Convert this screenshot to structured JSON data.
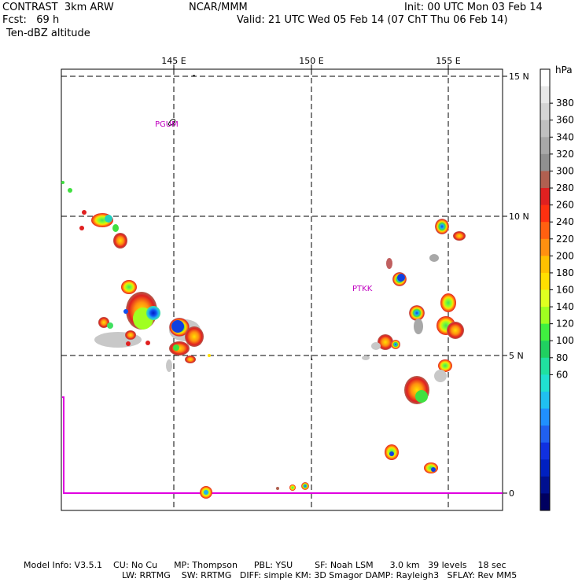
{
  "header": {
    "model": "CONTRAST  3km ARW",
    "org": "NCAR/MMM",
    "init": "Init: 00 UTC Mon 03 Feb 14",
    "fcst": "Fcst:   69 h",
    "valid": "Valid: 21 UTC Wed 05 Feb 14 (07 ChT Thu 06 Feb 14)",
    "field": "Ten-dBZ altitude"
  },
  "map": {
    "lon_labels": [
      "145 E",
      "150 E",
      "155 E"
    ],
    "lat_labels": [
      "15 N",
      "10 N",
      "5 N",
      "0"
    ],
    "stations": [
      {
        "name": "PGUM",
        "lon": 144.8,
        "lat": 13.4
      },
      {
        "name": "PTKK",
        "lon": 151.8,
        "lat": 7.4
      }
    ],
    "boundary_color": "#e000e0",
    "grid_color": "#000000"
  },
  "colorbar": {
    "unit": "hPa",
    "ticks": [
      "380",
      "360",
      "340",
      "320",
      "300",
      "280",
      "260",
      "240",
      "220",
      "200",
      "180",
      "160",
      "140",
      "120",
      "100",
      "80",
      "60"
    ],
    "colors": [
      "#ffffff",
      "#e8e8e8",
      "#d4d4d4",
      "#c0c0c0",
      "#a8a8a8",
      "#909090",
      "#b06050",
      "#e02020",
      "#ff3010",
      "#ff6010",
      "#ff9010",
      "#ffc000",
      "#ffe000",
      "#e0ff20",
      "#a0ff20",
      "#40f040",
      "#20d060",
      "#20e0a0",
      "#20e0d0",
      "#20c0f0",
      "#2090ff",
      "#2060f0",
      "#1030e0",
      "#0020c0",
      "#001090",
      "#000060"
    ]
  },
  "footer": {
    "line1": "Model Info: V3.5.1    CU: No Cu      MP: Thompson      PBL: YSU        SF: Noah LSM      3.0 km   39 levels    18 sec",
    "line2": "LW: RRTMG    SW: RRTMG   DIFF: simple KM: 3D Smagor DAMP: Rayleigh3   SFLAY: Rev MM5"
  }
}
